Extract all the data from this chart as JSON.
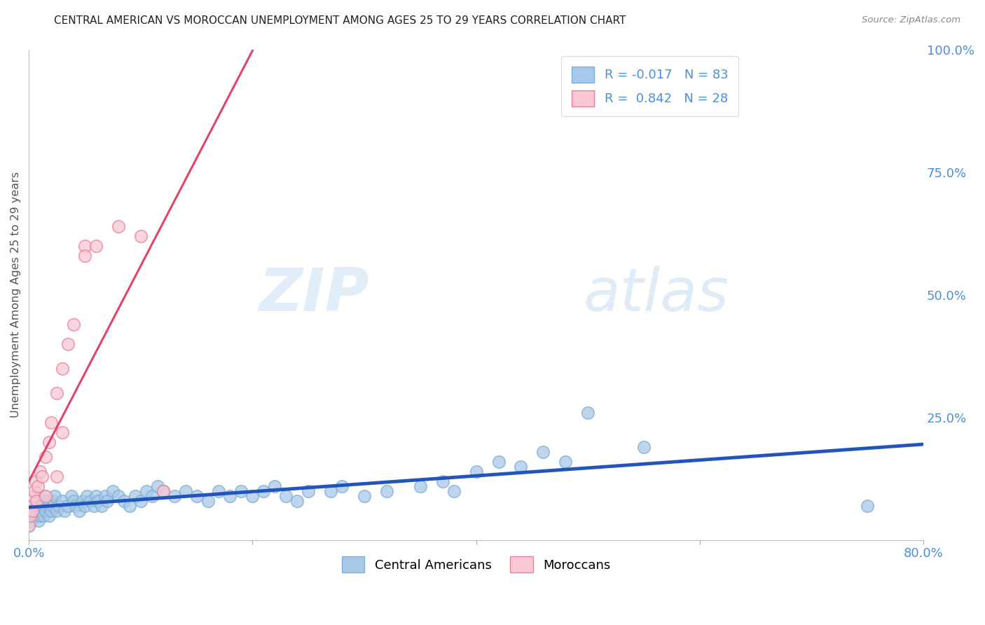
{
  "title": "CENTRAL AMERICAN VS MOROCCAN UNEMPLOYMENT AMONG AGES 25 TO 29 YEARS CORRELATION CHART",
  "source": "Source: ZipAtlas.com",
  "ylabel": "Unemployment Among Ages 25 to 29 years",
  "xlim": [
    0.0,
    0.8
  ],
  "ylim": [
    0.0,
    1.0
  ],
  "yticks_right": [
    0.0,
    0.25,
    0.5,
    0.75,
    1.0
  ],
  "ytick_right_labels": [
    "",
    "25.0%",
    "50.0%",
    "75.0%",
    "100.0%"
  ],
  "blue_color": "#a8c8e8",
  "blue_edge_color": "#7bafd4",
  "pink_color": "#f8c8d4",
  "pink_edge_color": "#e88099",
  "blue_line_color": "#2255bb",
  "pink_line_color": "#e04466",
  "legend_r_blue": "-0.017",
  "legend_n_blue": "83",
  "legend_r_pink": "0.842",
  "legend_n_pink": "28",
  "watermark_zip": "ZIP",
  "watermark_atlas": "atlas",
  "background_color": "#ffffff",
  "grid_color": "#cccccc",
  "title_color": "#222222",
  "axis_label_color": "#4a90d9",
  "blue_scatter_x": [
    0.0,
    0.0,
    0.0,
    0.002,
    0.003,
    0.004,
    0.005,
    0.005,
    0.007,
    0.008,
    0.009,
    0.01,
    0.01,
    0.011,
    0.012,
    0.013,
    0.014,
    0.015,
    0.016,
    0.017,
    0.018,
    0.019,
    0.02,
    0.021,
    0.022,
    0.023,
    0.025,
    0.027,
    0.03,
    0.032,
    0.035,
    0.038,
    0.04,
    0.042,
    0.045,
    0.048,
    0.05,
    0.052,
    0.055,
    0.058,
    0.06,
    0.062,
    0.065,
    0.068,
    0.07,
    0.075,
    0.08,
    0.085,
    0.09,
    0.095,
    0.1,
    0.105,
    0.11,
    0.115,
    0.12,
    0.13,
    0.14,
    0.15,
    0.16,
    0.17,
    0.18,
    0.19,
    0.2,
    0.21,
    0.22,
    0.23,
    0.24,
    0.25,
    0.27,
    0.28,
    0.3,
    0.32,
    0.35,
    0.37,
    0.38,
    0.4,
    0.42,
    0.44,
    0.46,
    0.48,
    0.5,
    0.55,
    0.75
  ],
  "blue_scatter_y": [
    0.03,
    0.05,
    0.07,
    0.04,
    0.06,
    0.08,
    0.05,
    0.09,
    0.06,
    0.07,
    0.04,
    0.05,
    0.08,
    0.06,
    0.07,
    0.05,
    0.09,
    0.06,
    0.07,
    0.08,
    0.05,
    0.07,
    0.06,
    0.08,
    0.07,
    0.09,
    0.06,
    0.07,
    0.08,
    0.06,
    0.07,
    0.09,
    0.08,
    0.07,
    0.06,
    0.08,
    0.07,
    0.09,
    0.08,
    0.07,
    0.09,
    0.08,
    0.07,
    0.09,
    0.08,
    0.1,
    0.09,
    0.08,
    0.07,
    0.09,
    0.08,
    0.1,
    0.09,
    0.11,
    0.1,
    0.09,
    0.1,
    0.09,
    0.08,
    0.1,
    0.09,
    0.1,
    0.09,
    0.1,
    0.11,
    0.09,
    0.08,
    0.1,
    0.1,
    0.11,
    0.09,
    0.1,
    0.11,
    0.12,
    0.1,
    0.14,
    0.16,
    0.15,
    0.18,
    0.16,
    0.26,
    0.19,
    0.07
  ],
  "pink_scatter_x": [
    0.0,
    0.0,
    0.001,
    0.002,
    0.003,
    0.004,
    0.005,
    0.006,
    0.007,
    0.008,
    0.01,
    0.012,
    0.015,
    0.018,
    0.02,
    0.025,
    0.03,
    0.035,
    0.04,
    0.05,
    0.06,
    0.08,
    0.1,
    0.12,
    0.015,
    0.025,
    0.03,
    0.05
  ],
  "pink_scatter_y": [
    0.03,
    0.07,
    0.05,
    0.08,
    0.06,
    0.09,
    0.1,
    0.12,
    0.08,
    0.11,
    0.14,
    0.13,
    0.17,
    0.2,
    0.24,
    0.3,
    0.35,
    0.4,
    0.44,
    0.6,
    0.6,
    0.64,
    0.62,
    0.1,
    0.09,
    0.13,
    0.22,
    0.58
  ]
}
